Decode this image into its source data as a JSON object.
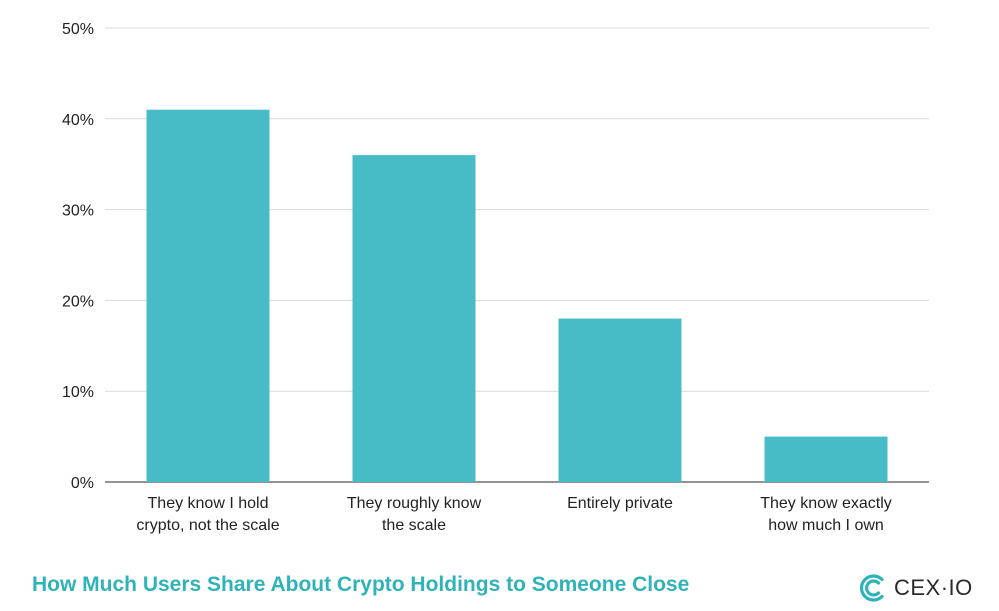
{
  "chart_data": {
    "type": "bar",
    "categories": [
      [
        "They know I hold",
        "crypto, not the scale"
      ],
      [
        "They roughly know",
        "the scale"
      ],
      [
        "Entirely private"
      ],
      [
        "They know exactly",
        "how much I own"
      ]
    ],
    "values": [
      41,
      36,
      18,
      5
    ],
    "y_ticks": [
      "0%",
      "10%",
      "20%",
      "30%",
      "40%",
      "50%"
    ],
    "ylim": [
      0,
      50
    ],
    "grid": true,
    "bar_color": "#47bcc6",
    "title": "How Much Users Share About Crypto Holdings to Someone Close"
  },
  "brand": {
    "name": "CEX·IO",
    "icon": "cex-logo-icon",
    "color": "#2fb3b8"
  }
}
